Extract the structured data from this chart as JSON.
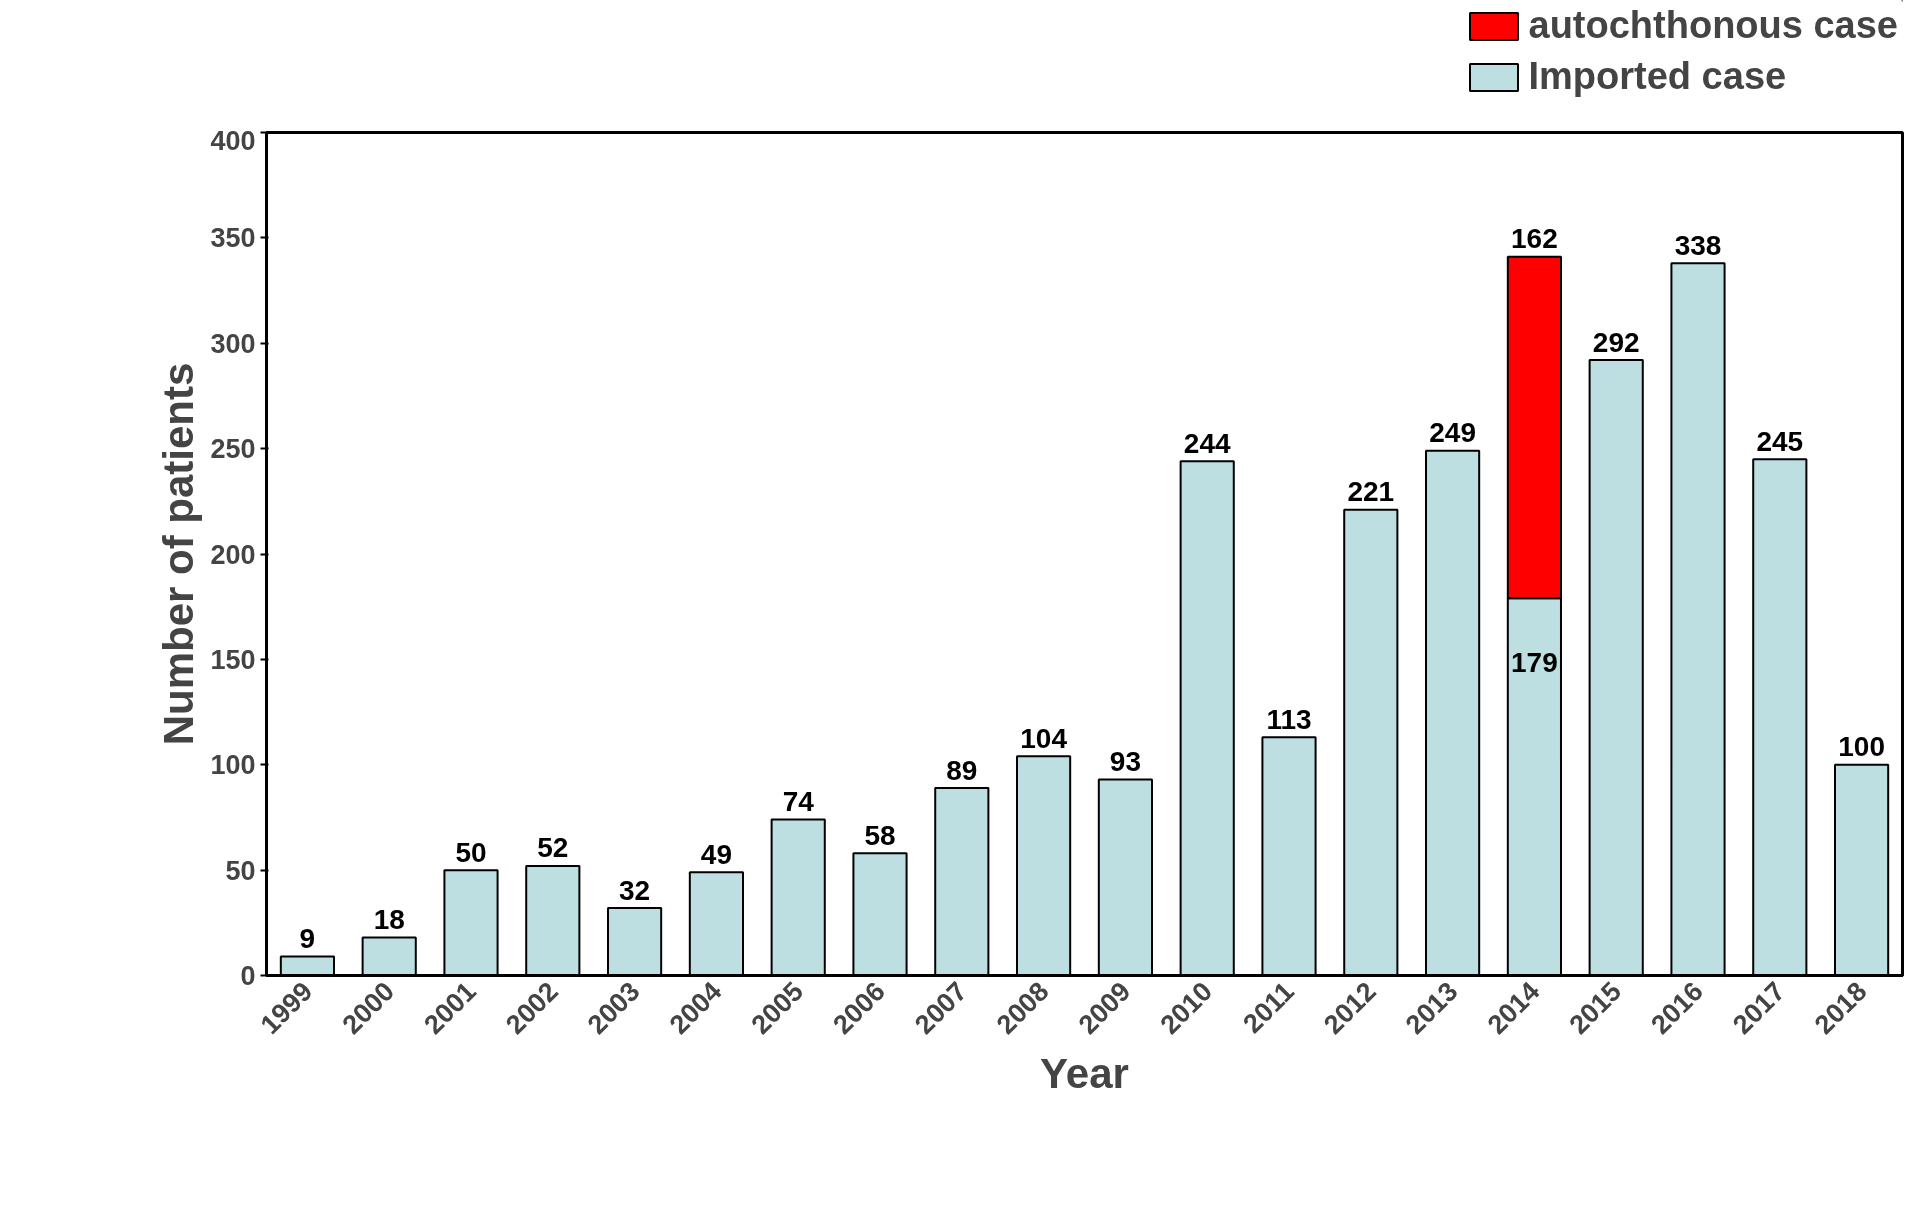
{
  "chart_data": {
    "type": "bar",
    "stacked": true,
    "xlabel": "Year",
    "ylabel": "Number of patients",
    "categories": [
      "1999",
      "2000",
      "2001",
      "2002",
      "2003",
      "2004",
      "2005",
      "2006",
      "2007",
      "2008",
      "2009",
      "2010",
      "2011",
      "2012",
      "2013",
      "2014",
      "2015",
      "2016",
      "2017",
      "2018"
    ],
    "series": [
      {
        "name": "Imported case",
        "color": "#bddfe1",
        "values": [
          9,
          18,
          50,
          52,
          32,
          49,
          74,
          58,
          89,
          104,
          93,
          244,
          113,
          221,
          249,
          179,
          292,
          338,
          245,
          100
        ],
        "value_labels": [
          "9",
          "18",
          "50",
          "52",
          "32",
          "49",
          "74",
          "58",
          "89",
          "104",
          "93",
          "244",
          "113",
          "221",
          "249",
          "179",
          "292",
          "338",
          "245",
          "100"
        ]
      },
      {
        "name": "autochthonous case",
        "color": "#ff0000",
        "values": [
          null,
          null,
          null,
          null,
          null,
          null,
          null,
          null,
          null,
          null,
          null,
          null,
          null,
          null,
          null,
          162,
          null,
          null,
          null,
          null
        ],
        "value_labels": [
          null,
          null,
          null,
          null,
          null,
          null,
          null,
          null,
          null,
          null,
          null,
          null,
          null,
          null,
          null,
          "162",
          null,
          null,
          null,
          null
        ]
      }
    ],
    "ylim": [
      0,
      400
    ],
    "yticks": [
      0,
      50,
      100,
      150,
      200,
      250,
      300,
      350,
      400
    ],
    "grid": false,
    "legend": "top right"
  }
}
